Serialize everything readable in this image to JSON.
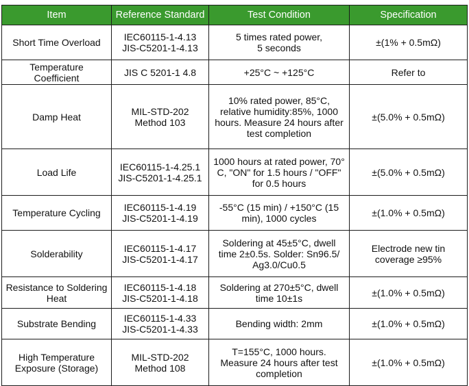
{
  "header": {
    "item": "Item",
    "reference": "Reference Standard",
    "condition": "Test Condition",
    "specification": "Specification"
  },
  "rows": [
    {
      "item": "Short Time Overload",
      "reference": "IEC60115-1-4.13\nJIS-C5201-1-4.13",
      "condition": "5 times rated power,\n5 seconds",
      "specification": "±(1% + 0.5mΩ)"
    },
    {
      "item": "Temperature\nCoefficient",
      "reference": "JIS C 5201-1 4.8",
      "condition": "+25°C ~ +125°C",
      "specification": "Refer to"
    },
    {
      "item": "Damp Heat",
      "reference": "MIL-STD-202\nMethod 103",
      "condition": "10% rated power, 85°C,\nrelative humidity:85%, 1000\nhours. Measure 24 hours after\ntest completion",
      "specification": "±(5.0% + 0.5mΩ)"
    },
    {
      "item": "Load Life",
      "reference": "IEC60115-1-4.25.1\nJIS-C5201-1-4.25.1",
      "condition": "1000 hours at rated power, 70°\nC, \"ON\" for 1.5 hours / \"OFF\"\nfor 0.5 hours",
      "specification": "±(5.0% + 0.5mΩ)"
    },
    {
      "item": "Temperature Cycling",
      "reference": "IEC60115-1-4.19\nJIS-C5201-1-4.19",
      "condition": "-55°C (15 min) / +150°C (15\nmin), 1000 cycles",
      "specification": "±(1.0% + 0.5mΩ)"
    },
    {
      "item": "Solderability",
      "reference": "IEC60115-1-4.17\nJIS-C5201-1-4.17",
      "condition": "Soldering at 45±5°C, dwell\ntime 2±0.5s. Solder: Sn96.5/\nAg3.0/Cu0.5",
      "specification": "Electrode new tin\ncoverage ≥95%"
    },
    {
      "item": "Resistance to Soldering\nHeat",
      "reference": "IEC60115-1-4.18\nJIS-C5201-1-4.18",
      "condition": "Soldering at 270±5°C, dwell\ntime 10±1s",
      "specification": "±(1.0% + 0.5mΩ)"
    },
    {
      "item": "Substrate Bending",
      "reference": "IEC60115-1-4.33\nJIS-C5201-1-4.33",
      "condition": "Bending width: 2mm",
      "specification": "±(1.0% + 0.5mΩ)"
    },
    {
      "item": "High Temperature\nExposure (Storage)",
      "reference": "MIL-STD-202\nMethod 108",
      "condition": "T=155°C, 1000 hours.\nMeasure 24 hours after test\ncompletion",
      "specification": "±(1.0% + 0.5mΩ)"
    }
  ]
}
